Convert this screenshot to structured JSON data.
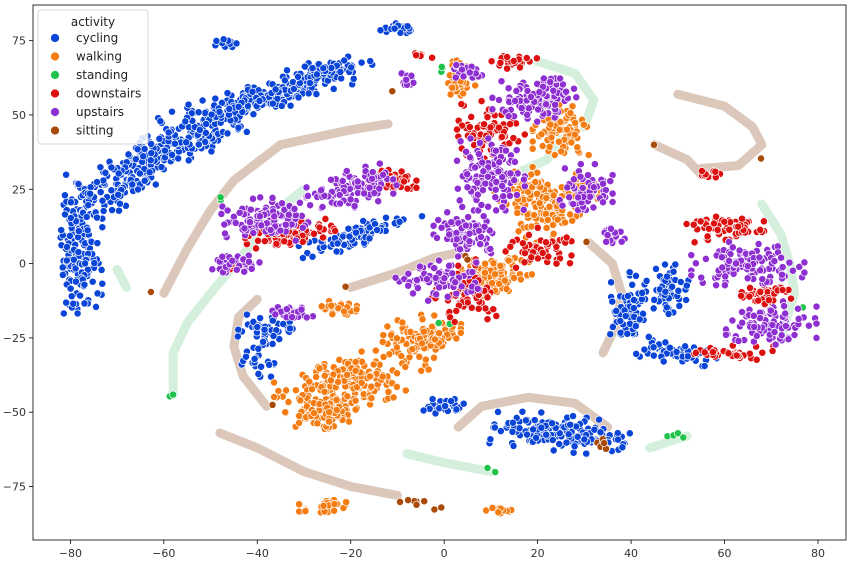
{
  "chart_data": {
    "type": "scatter",
    "title": "",
    "xlabel": "",
    "ylabel": "",
    "xlim": [
      -88,
      86
    ],
    "ylim": [
      -93,
      87
    ],
    "x_ticks": [
      -80,
      -60,
      -40,
      -20,
      0,
      20,
      40,
      60,
      80
    ],
    "y_ticks": [
      -75,
      -50,
      -25,
      0,
      25,
      50,
      75
    ],
    "x_tick_labels": [
      "−80",
      "−60",
      "−40",
      "−20",
      "0",
      "20",
      "40",
      "60",
      "80"
    ],
    "y_tick_labels": [
      "−75",
      "−50",
      "−25",
      "0",
      "25",
      "50",
      "75"
    ],
    "grid": false,
    "legend": {
      "title": "activity",
      "placement": "top-left",
      "entries": [
        "cycling",
        "walking",
        "standing",
        "downstairs",
        "upstairs",
        "sitting"
      ]
    },
    "series": [
      {
        "name": "cycling",
        "color": "#0a45d8",
        "clusters": [
          {
            "cx": -60,
            "cy": 38,
            "rx": 18,
            "ry": 5,
            "angle": 35,
            "n": 250
          },
          {
            "cx": -40,
            "cy": 55,
            "rx": 18,
            "ry": 4,
            "angle": 25,
            "n": 220
          },
          {
            "cx": -25,
            "cy": 65,
            "rx": 8,
            "ry": 3,
            "angle": 20,
            "n": 80
          },
          {
            "cx": -78,
            "cy": 5,
            "rx": 4,
            "ry": 18,
            "angle": 0,
            "n": 160
          },
          {
            "cx": -70,
            "cy": 25,
            "rx": 10,
            "ry": 5,
            "angle": 50,
            "n": 80
          },
          {
            "cx": -47,
            "cy": 74,
            "rx": 2.5,
            "ry": 1.2,
            "angle": 0,
            "n": 20
          },
          {
            "cx": -10,
            "cy": 79,
            "rx": 3,
            "ry": 1.5,
            "angle": 0,
            "n": 25
          },
          {
            "cx": -18,
            "cy": 10,
            "rx": 12,
            "ry": 3,
            "angle": 25,
            "n": 90
          },
          {
            "cx": -38,
            "cy": -22,
            "rx": 6,
            "ry": 4,
            "angle": 0,
            "n": 45
          },
          {
            "cx": -40,
            "cy": -32,
            "rx": 3,
            "ry": 5,
            "angle": 0,
            "n": 25
          },
          {
            "cx": 25,
            "cy": -57,
            "rx": 12,
            "ry": 5,
            "angle": -10,
            "n": 170
          },
          {
            "cx": 0,
            "cy": -48,
            "rx": 4,
            "ry": 2,
            "angle": 0,
            "n": 35
          },
          {
            "cx": 40,
            "cy": -15,
            "rx": 4,
            "ry": 10,
            "angle": 0,
            "n": 70
          },
          {
            "cx": 50,
            "cy": -30,
            "rx": 8,
            "ry": 3,
            "angle": -15,
            "n": 60
          },
          {
            "cx": 48,
            "cy": -10,
            "rx": 4,
            "ry": 8,
            "angle": 0,
            "n": 50
          }
        ]
      },
      {
        "name": "walking",
        "color": "#f57c12",
        "clusters": [
          {
            "cx": -20,
            "cy": -40,
            "rx": 14,
            "ry": 7,
            "angle": 25,
            "n": 200
          },
          {
            "cx": -25,
            "cy": -50,
            "rx": 5,
            "ry": 5,
            "angle": 0,
            "n": 90
          },
          {
            "cx": -5,
            "cy": -25,
            "rx": 8,
            "ry": 6,
            "angle": 20,
            "n": 110
          },
          {
            "cx": 10,
            "cy": -5,
            "rx": 8,
            "ry": 6,
            "angle": 45,
            "n": 120
          },
          {
            "cx": 20,
            "cy": 20,
            "rx": 6,
            "ry": 10,
            "angle": 20,
            "n": 150
          },
          {
            "cx": 25,
            "cy": 45,
            "rx": 5,
            "ry": 7,
            "angle": 0,
            "n": 90
          },
          {
            "cx": 3,
            "cy": 62,
            "rx": 3,
            "ry": 6,
            "angle": 0,
            "n": 45
          },
          {
            "cx": -25,
            "cy": -82,
            "rx": 5,
            "ry": 2,
            "angle": 0,
            "n": 35
          },
          {
            "cx": 12,
            "cy": -83,
            "rx": 2.5,
            "ry": 1.5,
            "angle": 0,
            "n": 15
          },
          {
            "cx": -22,
            "cy": -15,
            "rx": 5,
            "ry": 2,
            "angle": 0,
            "n": 30
          },
          {
            "cx": 30,
            "cy": 25,
            "rx": 4,
            "ry": 5,
            "angle": 0,
            "n": 35
          }
        ]
      },
      {
        "name": "standing",
        "color": "#1fc24a",
        "clusters": [
          {
            "cx": 0,
            "cy": 65,
            "rx": 1,
            "ry": 1,
            "angle": 0,
            "n": 3
          },
          {
            "cx": 10,
            "cy": -70,
            "rx": 1,
            "ry": 1,
            "angle": 0,
            "n": 2
          },
          {
            "cx": -58,
            "cy": -44,
            "rx": 1,
            "ry": 1,
            "angle": 0,
            "n": 2
          },
          {
            "cx": 50,
            "cy": -58,
            "rx": 2,
            "ry": 0.8,
            "angle": 0,
            "n": 4
          },
          {
            "cx": -48,
            "cy": 22,
            "rx": 1,
            "ry": 1,
            "angle": 0,
            "n": 2
          },
          {
            "cx": 0,
            "cy": -20,
            "rx": 1,
            "ry": 1,
            "angle": 0,
            "n": 2
          },
          {
            "cx": 77,
            "cy": -15,
            "rx": 1,
            "ry": 1,
            "angle": 0,
            "n": 1
          }
        ]
      },
      {
        "name": "downstairs",
        "color": "#dd1010",
        "clusters": [
          {
            "cx": -33,
            "cy": 10,
            "rx": 8,
            "ry": 3,
            "angle": 10,
            "n": 90
          },
          {
            "cx": -12,
            "cy": 28,
            "rx": 5,
            "ry": 3,
            "angle": 0,
            "n": 50
          },
          {
            "cx": 10,
            "cy": 45,
            "rx": 6,
            "ry": 8,
            "angle": 0,
            "n": 80
          },
          {
            "cx": 15,
            "cy": 68,
            "rx": 4,
            "ry": 2,
            "angle": 0,
            "n": 30
          },
          {
            "cx": 5,
            "cy": -10,
            "rx": 6,
            "ry": 8,
            "angle": 30,
            "n": 70
          },
          {
            "cx": 20,
            "cy": 5,
            "rx": 6,
            "ry": 6,
            "angle": 0,
            "n": 60
          },
          {
            "cx": 60,
            "cy": 12,
            "rx": 7,
            "ry": 4,
            "angle": 0,
            "n": 60
          },
          {
            "cx": 68,
            "cy": -10,
            "rx": 6,
            "ry": 3,
            "angle": 0,
            "n": 40
          },
          {
            "cx": 62,
            "cy": -30,
            "rx": 7,
            "ry": 2,
            "angle": 0,
            "n": 40
          },
          {
            "cx": 57,
            "cy": 30,
            "rx": 3,
            "ry": 1.2,
            "angle": 0,
            "n": 15
          },
          {
            "cx": -45,
            "cy": 0,
            "rx": 2,
            "ry": 2,
            "angle": 0,
            "n": 12
          },
          {
            "cx": -5,
            "cy": 70,
            "rx": 2,
            "ry": 1,
            "angle": 0,
            "n": 8
          }
        ]
      },
      {
        "name": "upstairs",
        "color": "#8e2fd2",
        "clusters": [
          {
            "cx": -38,
            "cy": 15,
            "rx": 8,
            "ry": 6,
            "angle": 0,
            "n": 110
          },
          {
            "cx": -20,
            "cy": 25,
            "rx": 8,
            "ry": 5,
            "angle": 20,
            "n": 110
          },
          {
            "cx": -45,
            "cy": 0,
            "rx": 5,
            "ry": 3,
            "angle": 0,
            "n": 40
          },
          {
            "cx": 10,
            "cy": 30,
            "rx": 6,
            "ry": 10,
            "angle": 0,
            "n": 120
          },
          {
            "cx": 20,
            "cy": 55,
            "rx": 8,
            "ry": 6,
            "angle": 0,
            "n": 110
          },
          {
            "cx": 5,
            "cy": 10,
            "rx": 6,
            "ry": 6,
            "angle": 0,
            "n": 80
          },
          {
            "cx": 0,
            "cy": -5,
            "rx": 8,
            "ry": 5,
            "angle": 20,
            "n": 80
          },
          {
            "cx": 30,
            "cy": 25,
            "rx": 5,
            "ry": 7,
            "angle": 0,
            "n": 60
          },
          {
            "cx": 65,
            "cy": 0,
            "rx": 10,
            "ry": 6,
            "angle": 0,
            "n": 120
          },
          {
            "cx": 70,
            "cy": -20,
            "rx": 8,
            "ry": 6,
            "angle": 0,
            "n": 90
          },
          {
            "cx": -32,
            "cy": -17,
            "rx": 4,
            "ry": 2,
            "angle": 0,
            "n": 25
          },
          {
            "cx": -8,
            "cy": 62,
            "rx": 2,
            "ry": 2,
            "angle": 0,
            "n": 15
          },
          {
            "cx": 36,
            "cy": 10,
            "rx": 3,
            "ry": 3,
            "angle": 0,
            "n": 20
          },
          {
            "cx": 5,
            "cy": 65,
            "rx": 3,
            "ry": 2,
            "angle": 0,
            "n": 20
          }
        ]
      },
      {
        "name": "sitting",
        "color": "#a84a08",
        "clusters": [
          {
            "cx": 5,
            "cy": 2,
            "rx": 1,
            "ry": 1,
            "angle": 0,
            "n": 2
          },
          {
            "cx": 34,
            "cy": -60,
            "rx": 1,
            "ry": 3,
            "angle": 0,
            "n": 8
          },
          {
            "cx": -5,
            "cy": -81,
            "rx": 4,
            "ry": 1,
            "angle": -15,
            "n": 8
          },
          {
            "cx": 45,
            "cy": 40,
            "rx": 0.5,
            "ry": 0.5,
            "angle": 0,
            "n": 1
          },
          {
            "cx": -63,
            "cy": -10,
            "rx": 0.5,
            "ry": 0.5,
            "angle": 0,
            "n": 1
          },
          {
            "cx": -37,
            "cy": -48,
            "rx": 0.5,
            "ry": 0.5,
            "angle": 0,
            "n": 1
          },
          {
            "cx": -21,
            "cy": -8,
            "rx": 0.5,
            "ry": 0.5,
            "angle": 0,
            "n": 1
          },
          {
            "cx": -11,
            "cy": 58,
            "rx": 0.5,
            "ry": 0.5,
            "angle": 0,
            "n": 1
          },
          {
            "cx": 68,
            "cy": 35,
            "rx": 0.5,
            "ry": 0.5,
            "angle": 0,
            "n": 1
          },
          {
            "cx": 30,
            "cy": 7,
            "rx": 0.5,
            "ry": 0.5,
            "angle": 0,
            "n": 1
          }
        ]
      }
    ],
    "trails": [
      {
        "series": "sitting",
        "color": "#d8c2b4",
        "points": [
          [
            -60,
            -10
          ],
          [
            -55,
            5
          ],
          [
            -50,
            18
          ],
          [
            -45,
            28
          ],
          [
            -35,
            40
          ],
          [
            -20,
            45
          ],
          [
            -12,
            47
          ]
        ]
      },
      {
        "series": "sitting",
        "color": "#d8c2b4",
        "points": [
          [
            -48,
            -57
          ],
          [
            -40,
            -62
          ],
          [
            -30,
            -70
          ],
          [
            -20,
            -75
          ],
          [
            -10,
            -78
          ]
        ]
      },
      {
        "series": "sitting",
        "color": "#d8c2b4",
        "points": [
          [
            -38,
            -48
          ],
          [
            -43,
            -38
          ],
          [
            -45,
            -28
          ],
          [
            -44,
            -18
          ],
          [
            -40,
            -12
          ]
        ]
      },
      {
        "series": "sitting",
        "color": "#d8c2b4",
        "points": [
          [
            -20,
            -8
          ],
          [
            -10,
            -3
          ],
          [
            -2,
            2
          ],
          [
            4,
            4
          ]
        ]
      },
      {
        "series": "sitting",
        "color": "#d8c2b4",
        "points": [
          [
            35,
            -55
          ],
          [
            28,
            -47
          ],
          [
            18,
            -45
          ],
          [
            8,
            -48
          ],
          [
            3,
            -55
          ]
        ]
      },
      {
        "series": "sitting",
        "color": "#d8c2b4",
        "points": [
          [
            50,
            57
          ],
          [
            60,
            53
          ],
          [
            66,
            46
          ],
          [
            68,
            40
          ],
          [
            63,
            33
          ],
          [
            55,
            32
          ]
        ]
      },
      {
        "series": "sitting",
        "color": "#d8c2b4",
        "points": [
          [
            45,
            40
          ],
          [
            52,
            35
          ],
          [
            55,
            30
          ]
        ]
      },
      {
        "series": "sitting",
        "color": "#d8c2b4",
        "points": [
          [
            31,
            7
          ],
          [
            36,
            0
          ],
          [
            38,
            -10
          ],
          [
            37,
            -20
          ],
          [
            34,
            -30
          ]
        ]
      },
      {
        "series": "standing",
        "color": "#cfeed8",
        "points": [
          [
            -58,
            -44
          ],
          [
            -58,
            -30
          ],
          [
            -55,
            -20
          ],
          [
            -50,
            -10
          ],
          [
            -42,
            5
          ],
          [
            -38,
            15
          ],
          [
            -30,
            25
          ]
        ]
      },
      {
        "series": "standing",
        "color": "#cfeed8",
        "points": [
          [
            -8,
            -64
          ],
          [
            0,
            -67
          ],
          [
            10,
            -70
          ]
        ]
      },
      {
        "series": "standing",
        "color": "#cfeed8",
        "points": [
          [
            44,
            -62
          ],
          [
            48,
            -60
          ],
          [
            52,
            -58
          ]
        ]
      },
      {
        "series": "standing",
        "color": "#cfeed8",
        "points": [
          [
            20,
            68
          ],
          [
            28,
            64
          ],
          [
            32,
            55
          ],
          [
            30,
            46
          ]
        ]
      },
      {
        "series": "standing",
        "color": "#cfeed8",
        "points": [
          [
            15,
            30
          ],
          [
            22,
            35
          ],
          [
            25,
            42
          ]
        ]
      },
      {
        "series": "standing",
        "color": "#cfeed8",
        "points": [
          [
            -70,
            -2
          ],
          [
            -68,
            -8
          ]
        ]
      },
      {
        "series": "standing",
        "color": "#cfeed8",
        "points": [
          [
            68,
            20
          ],
          [
            72,
            10
          ],
          [
            74,
            0
          ],
          [
            75,
            -10
          ],
          [
            72,
            -25
          ]
        ]
      }
    ]
  }
}
